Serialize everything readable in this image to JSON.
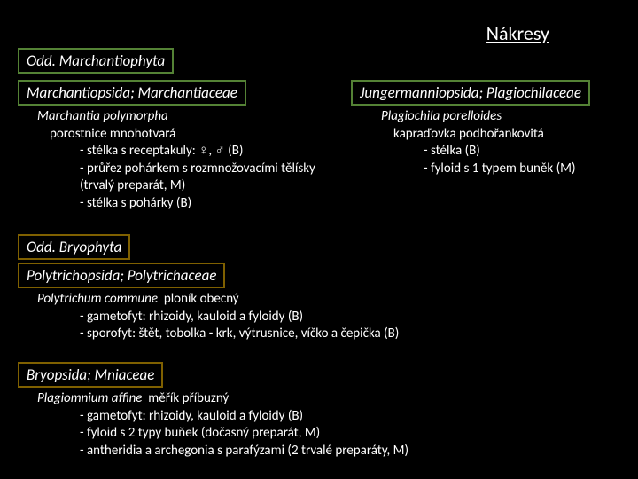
{
  "title": "Nákresy",
  "colors": {
    "background": "#000000",
    "text": "#ffffff",
    "green_border": "#548235",
    "olive_border": "#7f6000"
  },
  "sections": {
    "odd1": {
      "label": "Odd. Marchantiophyta"
    },
    "left_taxon": {
      "label": "Marchantiopsida; Marchantiaceae",
      "species": "Marchantia polymorpha",
      "common": "porostnice mnohotvará",
      "items": [
        "stélka s receptakuly: ♀, ♂ (B)",
        "průřez pohárkem s rozmnožovacími tělísky (trvalý preparát, M)",
        "stélka s pohárky (B)"
      ]
    },
    "right_taxon": {
      "label": "Jungermanniopsida; Plagiochilaceae",
      "species": "Plagiochila porelloides",
      "common": "kapraďovka podhořankovitá",
      "items": [
        "stélka (B)",
        "fyloid  s 1  typem buněk (M)"
      ]
    },
    "odd2": {
      "label": "Odd. Bryophyta"
    },
    "poly": {
      "label": "Polytrichopsida; Polytrichaceae",
      "species": "Polytrichum commune",
      "common": "ploník obecný",
      "items": [
        "gametofyt: rhizoidy, kauloid a fyloidy (B)",
        "sporofyt: štět, tobolka - krk, výtrusnice, víčko  a čepička (B)"
      ]
    },
    "bry": {
      "label": "Bryopsida; Mniaceae",
      "species": "Plagiomnium affine",
      "common": "měřík příbuzný",
      "items": [
        "gametofyt: rhizoidy, kauloid a fyloidy (B)",
        "fyloid  s 2 typy buňek (dočasný preparát, M)",
        "antheridia a archegonia s parafýzami (2  trvalé preparáty, M)"
      ]
    }
  }
}
